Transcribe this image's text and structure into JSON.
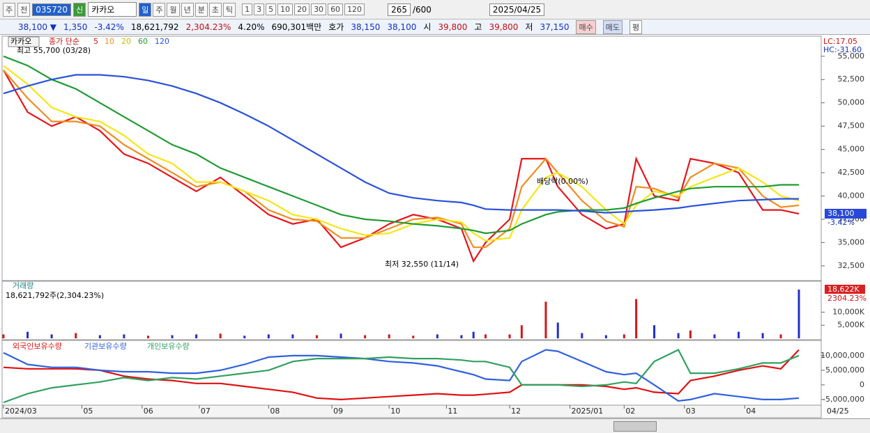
{
  "toolbar": {
    "view": "주",
    "prev": "전",
    "code": "035720",
    "badge": "신",
    "name": "카카오",
    "periods": [
      "일",
      "주",
      "월",
      "년",
      "분",
      "초",
      "틱"
    ],
    "intervals": [
      "1",
      "3",
      "5",
      "10",
      "20",
      "30",
      "60",
      "120"
    ],
    "count": "265",
    "max": "/600",
    "date": "2025/04/25"
  },
  "quote": {
    "price": "38,100 ▼",
    "change": "1,350",
    "change_pct": "-3.42%",
    "volume": "18,621,792",
    "volume_pct": "2,304.23%",
    "turnover_pct": "4.20%",
    "amount": "690,301백만",
    "ask_label": "호가",
    "ask": "38,150",
    "bid": "38,100",
    "open_label": "시",
    "open": "39,800",
    "high_label": "고",
    "high": "39,800",
    "low_label": "저",
    "low": "37,150",
    "buy": "매수",
    "sell": "매도",
    "avg": "평"
  },
  "chart_data": [
    {
      "type": "line",
      "title": "카카오",
      "legend_title": "종가 단순",
      "annotations": {
        "high": "최고 55,700 (03/28)",
        "low": "최저 32,550 (11/14)",
        "dividend": "배당락(0.00%)",
        "lc": "LC:17.05",
        "hc": "HC:-31.60",
        "last_price": "38,100",
        "last_pct": "-3.42%"
      },
      "x": [
        0,
        8,
        16,
        24,
        32,
        40,
        48,
        56,
        64,
        72,
        80,
        88,
        96,
        104,
        112,
        120,
        128,
        136,
        144,
        152,
        156,
        160,
        168,
        172,
        180,
        184,
        192,
        200,
        206,
        210,
        216,
        224,
        228,
        236,
        244,
        252,
        258,
        264
      ],
      "xlim": [
        0,
        264
      ],
      "xticks": [
        {
          "value": 0,
          "label": "2024/03"
        },
        {
          "value": 26,
          "label": "05"
        },
        {
          "value": 46,
          "label": "06"
        },
        {
          "value": 65,
          "label": "07"
        },
        {
          "value": 88,
          "label": "08"
        },
        {
          "value": 109,
          "label": "09"
        },
        {
          "value": 128,
          "label": "10"
        },
        {
          "value": 147,
          "label": "11"
        },
        {
          "value": 168,
          "label": "12"
        },
        {
          "value": 188,
          "label": "2025/01"
        },
        {
          "value": 206,
          "label": "02"
        },
        {
          "value": 226,
          "label": "03"
        },
        {
          "value": 246,
          "label": "04"
        }
      ],
      "last_date": "04/25",
      "ylim": [
        31000,
        57000
      ],
      "yticks": [
        {
          "value": 32500,
          "label": "32,500"
        },
        {
          "value": 35000,
          "label": "35,000"
        },
        {
          "value": 37500,
          "label": "37,500"
        },
        {
          "value": 40000,
          "label": "40,000"
        },
        {
          "value": 42500,
          "label": "42,500"
        },
        {
          "value": 45000,
          "label": "45,000"
        },
        {
          "value": 47500,
          "label": "47,500"
        },
        {
          "value": 50000,
          "label": "50,000"
        },
        {
          "value": 52500,
          "label": "52,500"
        },
        {
          "value": 55000,
          "label": "55,000"
        }
      ],
      "grid": false,
      "series": [
        {
          "name": "5",
          "color": "#e8141c",
          "values": [
            53500,
            49000,
            47500,
            48500,
            47000,
            44500,
            43500,
            42000,
            40500,
            42000,
            40000,
            38000,
            37000,
            37500,
            34500,
            35500,
            37000,
            38000,
            37500,
            36500,
            33000,
            35000,
            37500,
            44000,
            44000,
            41000,
            38000,
            36500,
            37000,
            44000,
            40000,
            39500,
            44000,
            43500,
            42500,
            38500,
            38500,
            38100
          ]
        },
        {
          "name": "10",
          "color": "#f08c1e",
          "values": [
            53500,
            50500,
            48000,
            48000,
            47500,
            45500,
            44000,
            42500,
            41000,
            41500,
            40500,
            38500,
            37500,
            37300,
            35500,
            35500,
            36500,
            37500,
            37700,
            37000,
            34500,
            34500,
            36500,
            41000,
            44000,
            42500,
            39500,
            37300,
            36700,
            41000,
            40800,
            39800,
            42000,
            43500,
            43000,
            40000,
            38800,
            39000
          ]
        },
        {
          "name": "20",
          "color": "#f5e614",
          "values": [
            54000,
            52000,
            49500,
            48500,
            48000,
            46500,
            44500,
            43500,
            41500,
            41500,
            40500,
            39500,
            38000,
            37500,
            36500,
            35800,
            36000,
            37000,
            37500,
            37200,
            36000,
            35200,
            35500,
            38500,
            42000,
            42500,
            41000,
            38500,
            37000,
            39000,
            40500,
            40000,
            41000,
            42000,
            43000,
            41500,
            40000,
            39500
          ]
        },
        {
          "name": "60",
          "color": "#1e9b32",
          "values": [
            55000,
            54000,
            52500,
            51500,
            50000,
            48500,
            47000,
            45500,
            44500,
            43000,
            42000,
            41000,
            40000,
            39000,
            38000,
            37500,
            37300,
            37000,
            36800,
            36500,
            36300,
            36000,
            36300,
            37000,
            38000,
            38300,
            38500,
            38500,
            38700,
            39200,
            39800,
            40500,
            40800,
            41000,
            41000,
            41000,
            41200,
            41200
          ]
        },
        {
          "name": "120",
          "color": "#2850dc",
          "values": [
            51000,
            51800,
            52500,
            53000,
            53000,
            52800,
            52400,
            51800,
            51000,
            50000,
            48800,
            47500,
            46000,
            44500,
            43000,
            41500,
            40300,
            39800,
            39500,
            39300,
            39000,
            38600,
            38500,
            38500,
            38500,
            38500,
            38400,
            38200,
            38300,
            38400,
            38500,
            38700,
            38900,
            39200,
            39500,
            39600,
            39700,
            39700
          ]
        }
      ]
    },
    {
      "type": "bar",
      "title": "거래량",
      "subtitle": "18,621,792주(2,304.23%)",
      "last_label": "18,622K",
      "last_pct": "2304.23%",
      "x": [
        0,
        8,
        16,
        24,
        32,
        40,
        48,
        56,
        64,
        72,
        80,
        88,
        96,
        104,
        112,
        120,
        128,
        136,
        144,
        152,
        156,
        160,
        168,
        172,
        180,
        184,
        192,
        200,
        206,
        210,
        216,
        224,
        228,
        236,
        244,
        252,
        258,
        264
      ],
      "xlim": [
        0,
        264
      ],
      "ylim": [
        0,
        21000
      ],
      "yticks": [
        {
          "value": 5000,
          "label": "5,000K"
        },
        {
          "value": 10000,
          "label": "10,000K"
        }
      ],
      "values": [
        1500,
        2500,
        1500,
        2000,
        1200,
        1500,
        1000,
        1200,
        1500,
        1800,
        1000,
        1500,
        1500,
        1200,
        1800,
        1200,
        1500,
        1000,
        1500,
        1200,
        2500,
        1500,
        1500,
        5000,
        14000,
        6000,
        2000,
        1200,
        1500,
        15000,
        5000,
        2000,
        3000,
        1500,
        2500,
        2000,
        1500,
        18622
      ],
      "colors": [
        "#d01818",
        "#2030c8",
        "#2030c8",
        "#d01818",
        "#2030c8",
        "#2030c8",
        "#d01818",
        "#2030c8",
        "#2030c8",
        "#d01818",
        "#2030c8",
        "#2030c8",
        "#2030c8",
        "#d01818",
        "#2030c8",
        "#d01818",
        "#d01818",
        "#d01818",
        "#2030c8",
        "#2030c8",
        "#2030c8",
        "#d01818",
        "#d01818",
        "#d01818",
        "#d01818",
        "#2030c8",
        "#2030c8",
        "#2030c8",
        "#d01818",
        "#d01818",
        "#2030c8",
        "#2030c8",
        "#d01818",
        "#2030c8",
        "#2030c8",
        "#2030c8",
        "#d01818",
        "#2030c8"
      ]
    },
    {
      "type": "line",
      "x": [
        0,
        8,
        16,
        24,
        32,
        40,
        48,
        56,
        64,
        72,
        80,
        88,
        96,
        104,
        112,
        120,
        128,
        136,
        144,
        152,
        156,
        160,
        168,
        172,
        180,
        184,
        192,
        200,
        206,
        210,
        216,
        224,
        228,
        236,
        244,
        252,
        258,
        264
      ],
      "xlim": [
        0,
        264
      ],
      "ylim": [
        -6700000,
        14500000
      ],
      "yticks": [
        {
          "value": -5000000,
          "label": "-5,000,000"
        },
        0,
        {
          "value": 5000000,
          "label": "5,000,000"
        },
        {
          "value": 10000000,
          "label": "10,000,000"
        }
      ],
      "series": [
        {
          "name": "외국인보유수량",
          "color": "#e01010",
          "values": [
            6000000,
            5500000,
            5500000,
            5500000,
            5000000,
            3000000,
            2000000,
            1500000,
            500000,
            500000,
            -500000,
            -1500000,
            -2500000,
            -4500000,
            -5000000,
            -4500000,
            -4000000,
            -3500000,
            -3000000,
            -3500000,
            -3500000,
            -3200000,
            -2500000,
            0,
            0,
            0,
            0,
            -500000,
            -1500000,
            -1000000,
            -2500000,
            -3000000,
            1500000,
            3000000,
            5000000,
            6500000,
            5500000,
            12000000
          ]
        },
        {
          "name": "기관보유수량",
          "color": "#3060e0",
          "values": [
            11000000,
            7000000,
            6000000,
            6000000,
            5000000,
            4500000,
            4500000,
            4000000,
            4000000,
            5000000,
            7000000,
            9500000,
            10000000,
            10000000,
            9500000,
            9000000,
            8000000,
            7500000,
            6500000,
            4500000,
            3500000,
            2000000,
            1500000,
            8000000,
            12000000,
            11500000,
            8000000,
            4500000,
            3500000,
            4000000,
            0,
            -5500000,
            -5000000,
            -3000000,
            -4000000,
            -5000000,
            -5000000,
            -4500000
          ]
        },
        {
          "name": "개인보유수량",
          "color": "#30a060",
          "values": [
            -6000000,
            -3000000,
            -1000000,
            0,
            1000000,
            2500000,
            1500000,
            2500000,
            2000000,
            3000000,
            4000000,
            5000000,
            8000000,
            9000000,
            9000000,
            9000000,
            9500000,
            9000000,
            9000000,
            8500000,
            8000000,
            8000000,
            6000000,
            0,
            0,
            0,
            -500000,
            0,
            1000000,
            500000,
            8000000,
            12000000,
            4000000,
            4000000,
            5500000,
            7500000,
            7500000,
            10000000
          ]
        }
      ]
    }
  ]
}
